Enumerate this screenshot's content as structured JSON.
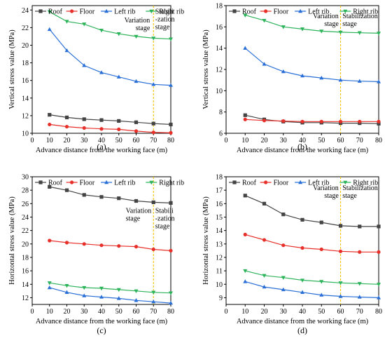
{
  "series_styles": [
    {
      "color": "#444444",
      "marker": "square"
    },
    {
      "color": "#e8302a",
      "marker": "circle"
    },
    {
      "color": "#2a6fd6",
      "marker": "triangle"
    },
    {
      "color": "#2db35a",
      "marker": "triangle-down"
    }
  ],
  "boundary_color": "#f2c200",
  "chart_data": [
    {
      "panel_label": "(a)",
      "type": "line",
      "xlabel": "Advance distance from the working face (m)",
      "ylabel": "Vertical stress value (MPa)",
      "xlim": [
        0,
        80
      ],
      "ylim": [
        10,
        24.5
      ],
      "xticks": [
        0,
        10,
        20,
        30,
        40,
        50,
        60,
        70,
        80
      ],
      "yticks": [
        10,
        12,
        14,
        16,
        18,
        20,
        22,
        24
      ],
      "x": [
        10,
        20,
        30,
        40,
        50,
        60,
        70,
        80
      ],
      "series": [
        {
          "name": "Roof",
          "values": [
            12.1,
            11.8,
            11.6,
            11.5,
            11.4,
            11.25,
            11.1,
            11.0
          ]
        },
        {
          "name": "Floor",
          "values": [
            11.0,
            10.75,
            10.6,
            10.5,
            10.45,
            10.25,
            10.1,
            10.05
          ]
        },
        {
          "name": "Left rib",
          "values": [
            21.8,
            19.4,
            17.7,
            16.9,
            16.4,
            15.9,
            15.55,
            15.45
          ]
        },
        {
          "name": "Right rib",
          "values": [
            23.8,
            22.7,
            22.4,
            21.7,
            21.3,
            21.0,
            20.8,
            20.7
          ]
        }
      ],
      "boundary_x": 70,
      "annotations": [
        {
          "text": [
            "Variation",
            "stage"
          ],
          "x": 68,
          "y": 22.6,
          "anchor": "end"
        },
        {
          "text": [
            "Stabili",
            "-zation",
            "stage"
          ],
          "x": 71,
          "y": 23.6,
          "anchor": "start"
        }
      ]
    },
    {
      "panel_label": "(b)",
      "type": "line",
      "xlabel": "Advance distance from the working face (m)",
      "ylabel": "Vertical stress value (MPa)",
      "xlim": [
        0,
        80
      ],
      "ylim": [
        6,
        18
      ],
      "xticks": [
        0,
        10,
        20,
        30,
        40,
        50,
        60,
        70,
        80
      ],
      "yticks": [
        6,
        8,
        10,
        12,
        14,
        16,
        18
      ],
      "x": [
        10,
        20,
        30,
        40,
        50,
        60,
        70,
        80
      ],
      "series": [
        {
          "name": "Roof",
          "values": [
            7.7,
            7.3,
            7.1,
            7.0,
            7.0,
            6.95,
            6.95,
            6.9
          ]
        },
        {
          "name": "Floor",
          "values": [
            7.3,
            7.2,
            7.15,
            7.1,
            7.1,
            7.1,
            7.1,
            7.1
          ]
        },
        {
          "name": "Left rib",
          "values": [
            14.0,
            12.5,
            11.8,
            11.4,
            11.2,
            11.0,
            10.9,
            10.85
          ]
        },
        {
          "name": "Right rib",
          "values": [
            17.1,
            16.6,
            16.0,
            15.8,
            15.6,
            15.5,
            15.45,
            15.4
          ]
        }
      ],
      "boundary_x": 60,
      "annotations": [
        {
          "text": [
            "Variation",
            "stage"
          ],
          "x": 59,
          "y": 16.8,
          "anchor": "end"
        },
        {
          "text": [
            "Stabilization",
            "stage"
          ],
          "x": 61,
          "y": 16.8,
          "anchor": "start"
        }
      ]
    },
    {
      "panel_label": "(c)",
      "type": "line",
      "xlabel": "Advance distance from the working face (m)",
      "ylabel": "Horizontal stress value (MPa)",
      "xlim": [
        0,
        80
      ],
      "ylim": [
        11,
        30
      ],
      "xticks": [
        0,
        10,
        20,
        30,
        40,
        50,
        60,
        70,
        80
      ],
      "yticks": [
        12,
        14,
        16,
        18,
        20,
        22,
        24,
        26,
        28,
        30
      ],
      "x": [
        10,
        20,
        30,
        40,
        50,
        60,
        70,
        80
      ],
      "series": [
        {
          "name": "Roof",
          "values": [
            28.5,
            28.0,
            27.3,
            27.0,
            26.8,
            26.4,
            26.2,
            26.1
          ]
        },
        {
          "name": "Floor",
          "values": [
            20.5,
            20.2,
            20.0,
            19.8,
            19.7,
            19.6,
            19.2,
            19.0
          ]
        },
        {
          "name": "Left rib",
          "values": [
            13.5,
            12.8,
            12.3,
            12.1,
            11.9,
            11.6,
            11.4,
            11.2
          ]
        },
        {
          "name": "Right rib",
          "values": [
            14.2,
            13.8,
            13.5,
            13.4,
            13.2,
            13.0,
            12.8,
            12.7
          ]
        }
      ],
      "boundary_x": 70,
      "annotations": [
        {
          "text": [
            "Variation",
            "stage"
          ],
          "x": 54,
          "y": 24.6,
          "anchor": "start"
        },
        {
          "text": [
            "Stabili",
            "-zation",
            "stage"
          ],
          "x": 71,
          "y": 24.6,
          "anchor": "start"
        }
      ]
    },
    {
      "panel_label": "(d)",
      "type": "line",
      "xlabel": "Advance distance from the working face (m)",
      "ylabel": "Horizontal stress value (MPa)",
      "xlim": [
        0,
        80
      ],
      "ylim": [
        8.5,
        18
      ],
      "xticks": [
        0,
        10,
        20,
        30,
        40,
        50,
        60,
        70,
        80
      ],
      "yticks": [
        9,
        10,
        11,
        12,
        13,
        14,
        15,
        16,
        17,
        18
      ],
      "x": [
        10,
        20,
        30,
        40,
        50,
        60,
        70,
        80
      ],
      "series": [
        {
          "name": "Roof",
          "values": [
            16.6,
            16.0,
            15.2,
            14.8,
            14.6,
            14.35,
            14.3,
            14.3
          ]
        },
        {
          "name": "Floor",
          "values": [
            13.7,
            13.3,
            12.9,
            12.7,
            12.6,
            12.45,
            12.4,
            12.4
          ]
        },
        {
          "name": "Left rib",
          "values": [
            10.2,
            9.8,
            9.6,
            9.4,
            9.2,
            9.1,
            9.05,
            9.0
          ]
        },
        {
          "name": "Right rib",
          "values": [
            11.0,
            10.65,
            10.5,
            10.3,
            10.2,
            10.1,
            10.05,
            10.0
          ]
        }
      ],
      "boundary_x": 60,
      "annotations": [
        {
          "text": [
            "Variation",
            "stage"
          ],
          "x": 59,
          "y": 17.0,
          "anchor": "end"
        },
        {
          "text": [
            "Stabilization",
            "stage"
          ],
          "x": 61,
          "y": 17.0,
          "anchor": "start"
        }
      ]
    }
  ]
}
